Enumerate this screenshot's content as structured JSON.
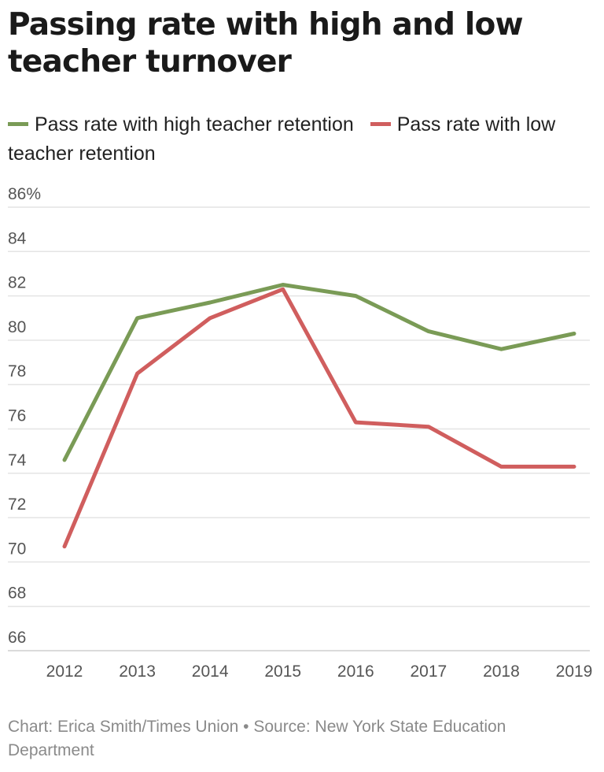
{
  "title": "Passing rate with high and low teacher turnover",
  "footer": "Chart: Erica Smith/Times Union • Source: New York State Education Department",
  "chart_data": {
    "type": "line",
    "title": "Passing rate with high and low teacher turnover",
    "x": [
      "2012",
      "2013",
      "2014",
      "2015",
      "2016",
      "2017",
      "2018",
      "2019"
    ],
    "series": [
      {
        "name": "Pass rate with high teacher retention",
        "color": "#7a9b56",
        "values": [
          74.6,
          81.0,
          81.7,
          82.5,
          82.0,
          80.4,
          79.6,
          80.3
        ]
      },
      {
        "name": "Pass rate with low teacher retention",
        "color": "#d05e5e",
        "values": [
          70.7,
          78.5,
          81.0,
          82.3,
          76.3,
          76.1,
          74.3,
          74.3
        ]
      }
    ],
    "ylim": [
      66,
      86
    ],
    "yticks": [
      "86%",
      "84",
      "82",
      "80",
      "78",
      "76",
      "74",
      "72",
      "70",
      "68",
      "66"
    ],
    "ytick_values": [
      86,
      84,
      82,
      80,
      78,
      76,
      74,
      72,
      70,
      68,
      66
    ],
    "grid": true,
    "legend_position": "top-left",
    "xlabel": "",
    "ylabel": ""
  }
}
